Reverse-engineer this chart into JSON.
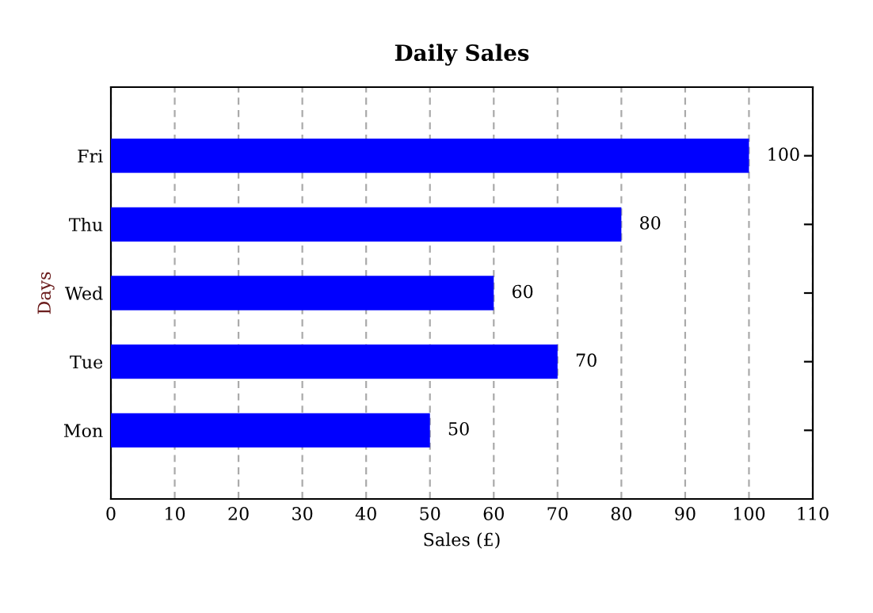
{
  "chart_data": {
    "type": "bar",
    "orientation": "horizontal",
    "title": "Daily Sales",
    "xlabel": "Sales (£)",
    "ylabel": "Days",
    "categories": [
      "Fri",
      "Thu",
      "Wed",
      "Tue",
      "Mon"
    ],
    "values": [
      100,
      80,
      60,
      70,
      50
    ],
    "color": "#0000ff",
    "xlim": [
      0,
      110
    ],
    "xticks": [
      0,
      10,
      20,
      30,
      40,
      50,
      60,
      70,
      80,
      90,
      100,
      110
    ],
    "grid": "x",
    "data_labels": true
  }
}
